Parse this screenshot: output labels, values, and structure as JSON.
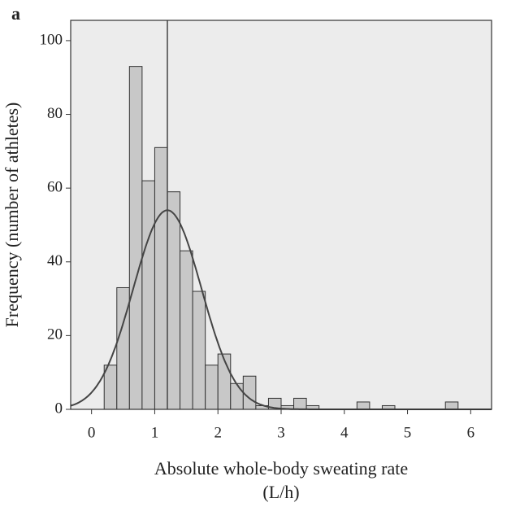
{
  "chart_data": {
    "type": "histogram",
    "panel": "a",
    "xlabel": [
      "Absolute whole-body sweating rate",
      "(L/h)"
    ],
    "ylabel": "Frequency (number of athletes)",
    "bins": [
      0.2,
      0.4,
      0.6,
      0.8,
      1.0,
      1.2,
      1.4,
      1.6,
      1.8,
      2.0,
      2.2,
      2.4,
      2.6,
      2.8,
      3.0,
      3.2,
      3.4,
      3.6,
      3.8,
      4.0,
      4.2,
      4.4,
      4.6,
      4.8,
      5.0,
      5.2,
      5.4,
      5.6,
      5.8
    ],
    "values": [
      12,
      33,
      93,
      62,
      71,
      59,
      43,
      32,
      12,
      15,
      7,
      9,
      1,
      3,
      1,
      3,
      1,
      0,
      0,
      0,
      2,
      0,
      1,
      0,
      0,
      0,
      0,
      2
    ],
    "color": "#c8c8c8",
    "mean_line": 1.2,
    "fit": {
      "mean": 1.2,
      "sd": 0.54,
      "peak": 54
    },
    "xlim": [
      -0.33,
      6.33
    ],
    "xticks": [
      0,
      1,
      2,
      3,
      4,
      5,
      6
    ],
    "ylim": [
      0,
      105.5
    ],
    "yticks": [
      0,
      20,
      40,
      60,
      80,
      100
    ]
  }
}
